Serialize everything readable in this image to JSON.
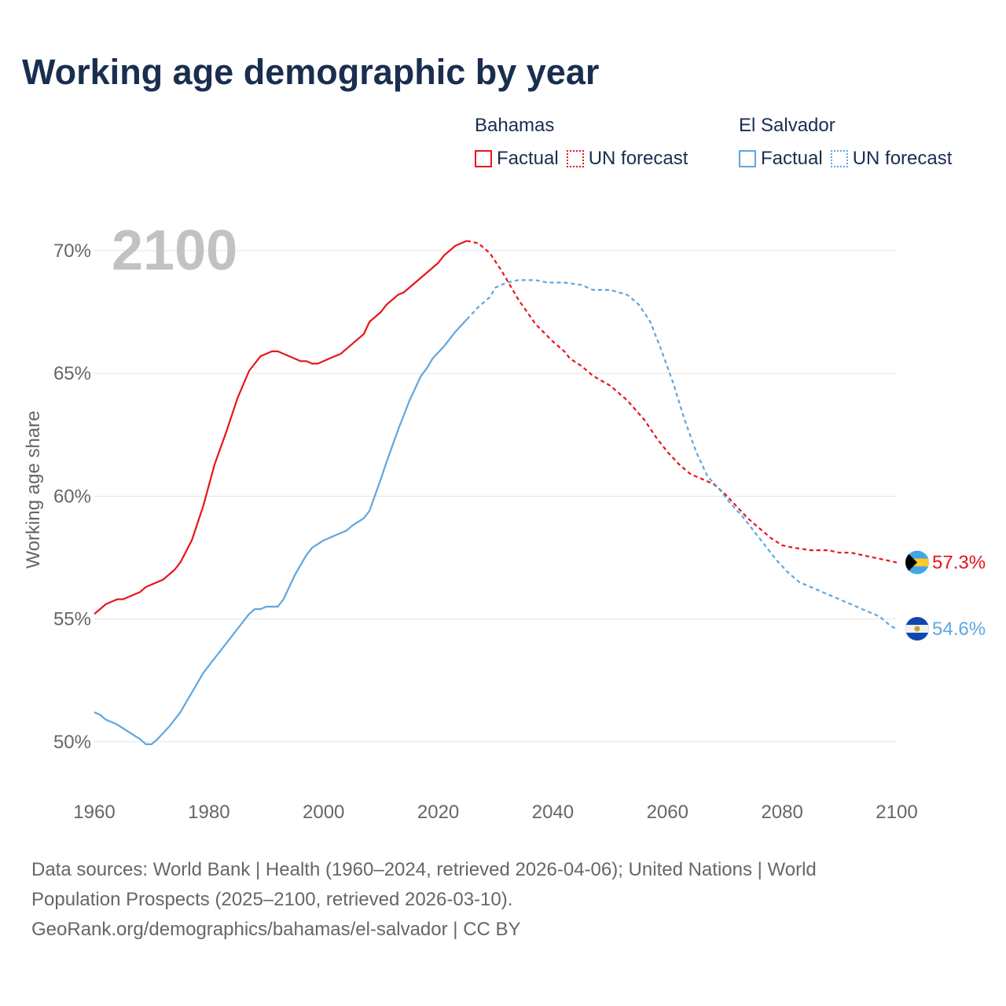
{
  "title": "Working age demographic by year",
  "year_watermark": "2100",
  "legend": {
    "groups": [
      {
        "name": "Bahamas",
        "color": "#e8141a",
        "factual_label": "Factual",
        "forecast_label": "UN forecast"
      },
      {
        "name": "El Salvador",
        "color": "#5fa6e0",
        "factual_label": "Factual",
        "forecast_label": "UN forecast"
      }
    ]
  },
  "footer": {
    "line1": "Data sources: World Bank | Health (1960–2024, retrieved 2026-04-06); United Nations | World",
    "line2": "Population Prospects (2025–2100, retrieved 2026-03-10).",
    "line3": "GeoRank.org/demographics/bahamas/el-salvador | CC BY"
  },
  "chart_data": {
    "type": "line",
    "title": "Working age demographic by year",
    "xlabel": "",
    "ylabel": "Working age share",
    "xlim": [
      1960,
      2100
    ],
    "ylim": [
      48.2,
      71.5
    ],
    "x_ticks": [
      1960,
      1980,
      2000,
      2020,
      2040,
      2060,
      2080,
      2100
    ],
    "y_ticks": [
      50,
      55,
      60,
      65,
      70
    ],
    "y_tick_labels": [
      "50%",
      "55%",
      "60%",
      "65%",
      "70%"
    ],
    "grid": true,
    "forecast_start_year": 2025,
    "series": [
      {
        "name": "Bahamas",
        "color": "#e8141a",
        "end_label": "57.3%",
        "flag": "bahamas",
        "points": [
          [
            1960,
            55.2
          ],
          [
            1962,
            55.6
          ],
          [
            1964,
            55.8
          ],
          [
            1965,
            55.8
          ],
          [
            1968,
            56.1
          ],
          [
            1969,
            56.3
          ],
          [
            1972,
            56.6
          ],
          [
            1974,
            57.0
          ],
          [
            1975,
            57.3
          ],
          [
            1977,
            58.2
          ],
          [
            1979,
            59.6
          ],
          [
            1981,
            61.3
          ],
          [
            1983,
            62.6
          ],
          [
            1985,
            64.0
          ],
          [
            1987,
            65.1
          ],
          [
            1989,
            65.7
          ],
          [
            1991,
            65.9
          ],
          [
            1992,
            65.9
          ],
          [
            1994,
            65.7
          ],
          [
            1996,
            65.5
          ],
          [
            1997,
            65.5
          ],
          [
            1998,
            65.4
          ],
          [
            1999,
            65.4
          ],
          [
            2001,
            65.6
          ],
          [
            2003,
            65.8
          ],
          [
            2005,
            66.2
          ],
          [
            2007,
            66.6
          ],
          [
            2008,
            67.1
          ],
          [
            2010,
            67.5
          ],
          [
            2011,
            67.8
          ],
          [
            2013,
            68.2
          ],
          [
            2014,
            68.3
          ],
          [
            2016,
            68.7
          ],
          [
            2018,
            69.1
          ],
          [
            2020,
            69.5
          ],
          [
            2021,
            69.8
          ],
          [
            2023,
            70.2
          ],
          [
            2025,
            70.4
          ],
          [
            2027,
            70.3
          ],
          [
            2029,
            69.9
          ],
          [
            2031,
            69.2
          ],
          [
            2034,
            68.0
          ],
          [
            2037,
            67.0
          ],
          [
            2040,
            66.3
          ],
          [
            2042,
            65.9
          ],
          [
            2043,
            65.6
          ],
          [
            2045,
            65.3
          ],
          [
            2047,
            64.9
          ],
          [
            2050,
            64.5
          ],
          [
            2053,
            63.9
          ],
          [
            2056,
            63.1
          ],
          [
            2058,
            62.4
          ],
          [
            2060,
            61.8
          ],
          [
            2062,
            61.3
          ],
          [
            2064,
            60.9
          ],
          [
            2066,
            60.7
          ],
          [
            2068,
            60.5
          ],
          [
            2070,
            60.1
          ],
          [
            2072,
            59.6
          ],
          [
            2074,
            59.1
          ],
          [
            2076,
            58.7
          ],
          [
            2078,
            58.3
          ],
          [
            2080,
            58.0
          ],
          [
            2082,
            57.9
          ],
          [
            2085,
            57.8
          ],
          [
            2088,
            57.8
          ],
          [
            2090,
            57.7
          ],
          [
            2092,
            57.7
          ],
          [
            2094,
            57.6
          ],
          [
            2096,
            57.5
          ],
          [
            2098,
            57.4
          ],
          [
            2100,
            57.3
          ]
        ]
      },
      {
        "name": "El Salvador",
        "color": "#5fa6e0",
        "end_label": "54.6%",
        "flag": "el-salvador",
        "points": [
          [
            1960,
            51.2
          ],
          [
            1961,
            51.1
          ],
          [
            1962,
            50.9
          ],
          [
            1964,
            50.7
          ],
          [
            1966,
            50.4
          ],
          [
            1968,
            50.1
          ],
          [
            1969,
            49.9
          ],
          [
            1970,
            49.9
          ],
          [
            1971,
            50.1
          ],
          [
            1973,
            50.6
          ],
          [
            1975,
            51.2
          ],
          [
            1977,
            52.0
          ],
          [
            1979,
            52.8
          ],
          [
            1981,
            53.4
          ],
          [
            1983,
            54.0
          ],
          [
            1985,
            54.6
          ],
          [
            1987,
            55.2
          ],
          [
            1988,
            55.4
          ],
          [
            1989,
            55.4
          ],
          [
            1990,
            55.5
          ],
          [
            1992,
            55.5
          ],
          [
            1993,
            55.8
          ],
          [
            1995,
            56.8
          ],
          [
            1997,
            57.6
          ],
          [
            1998,
            57.9
          ],
          [
            2000,
            58.2
          ],
          [
            2002,
            58.4
          ],
          [
            2004,
            58.6
          ],
          [
            2005,
            58.8
          ],
          [
            2007,
            59.1
          ],
          [
            2008,
            59.4
          ],
          [
            2010,
            60.7
          ],
          [
            2011,
            61.4
          ],
          [
            2013,
            62.7
          ],
          [
            2015,
            63.9
          ],
          [
            2017,
            64.9
          ],
          [
            2018,
            65.2
          ],
          [
            2019,
            65.6
          ],
          [
            2021,
            66.1
          ],
          [
            2023,
            66.7
          ],
          [
            2025,
            67.2
          ],
          [
            2027,
            67.7
          ],
          [
            2029,
            68.1
          ],
          [
            2030,
            68.5
          ],
          [
            2032,
            68.7
          ],
          [
            2034,
            68.8
          ],
          [
            2037,
            68.8
          ],
          [
            2039,
            68.7
          ],
          [
            2042,
            68.7
          ],
          [
            2045,
            68.6
          ],
          [
            2047,
            68.4
          ],
          [
            2050,
            68.4
          ],
          [
            2053,
            68.2
          ],
          [
            2055,
            67.8
          ],
          [
            2057,
            67.1
          ],
          [
            2059,
            65.9
          ],
          [
            2061,
            64.6
          ],
          [
            2063,
            63.1
          ],
          [
            2065,
            61.8
          ],
          [
            2067,
            60.8
          ],
          [
            2069,
            60.3
          ],
          [
            2071,
            59.7
          ],
          [
            2073,
            59.2
          ],
          [
            2075,
            58.6
          ],
          [
            2077,
            58.0
          ],
          [
            2079,
            57.4
          ],
          [
            2081,
            56.9
          ],
          [
            2083,
            56.5
          ],
          [
            2085,
            56.3
          ],
          [
            2087,
            56.1
          ],
          [
            2089,
            55.9
          ],
          [
            2091,
            55.7
          ],
          [
            2093,
            55.5
          ],
          [
            2095,
            55.3
          ],
          [
            2097,
            55.1
          ],
          [
            2098,
            54.9
          ],
          [
            2099,
            54.7
          ],
          [
            2100,
            54.6
          ]
        ]
      }
    ]
  }
}
